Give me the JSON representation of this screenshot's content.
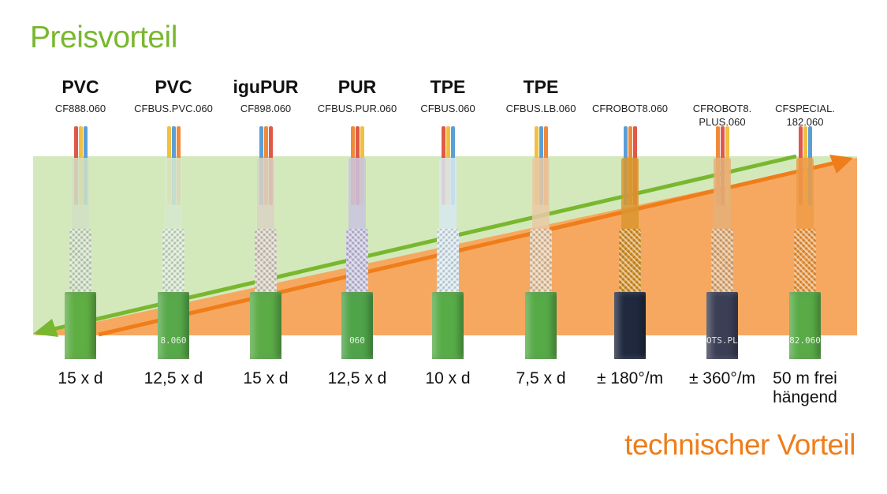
{
  "titles": {
    "price_advantage": "Preisvorteil",
    "technical_advantage": "technischer Vorteil"
  },
  "colors": {
    "green": "#79b72e",
    "orange": "#ef7d1a",
    "green_band": "#d3e9bc",
    "orange_band": "#f6a860"
  },
  "cables": [
    {
      "material": "PVC",
      "code": "CF888.060",
      "value": "15 x d",
      "jacket": "#5fae44",
      "core": "#cfe0c4",
      "print": ""
    },
    {
      "material": "PVC",
      "code": "CFBUS.PVC.060",
      "value": "12,5 x d",
      "jacket": "#57a94a",
      "core": "#d6e7cf",
      "print": "8.060"
    },
    {
      "material": "iguPUR",
      "code": "CF898.060",
      "value": "15 x d",
      "jacket": "#5bab47",
      "core": "#d9d2c4",
      "print": ""
    },
    {
      "material": "PUR",
      "code": "CFBUS.PUR.060",
      "value": "12,5 x d",
      "jacket": "#4fa449",
      "core": "#c9c4e0",
      "print": "060"
    },
    {
      "material": "TPE",
      "code": "CFBUS.060",
      "value": "10 x d",
      "jacket": "#57ac48",
      "core": "#d8e8f0",
      "print": ""
    },
    {
      "material": "TPE",
      "code": "CFBUS.LB.060",
      "value": "7,5 x d",
      "jacket": "#56aa47",
      "core": "#e9c9a4",
      "print": ""
    },
    {
      "material": "",
      "code": "CFROBOT8.060",
      "value": "± 180°/m",
      "jacket": "#20293f",
      "core": "#d9962f",
      "print": ""
    },
    {
      "material": "",
      "code": "CFROBOT8.\nPLUS.060",
      "value": "± 360°/m",
      "jacket": "#3b3f56",
      "core": "#e4b07a",
      "print": "OTS.PLUS"
    },
    {
      "material": "",
      "code": "CFSPECIAL.\n182.060",
      "value": "50 m frei\nhängend",
      "jacket": "#58ab46",
      "core": "#ef9c46",
      "print": "82.060"
    }
  ]
}
